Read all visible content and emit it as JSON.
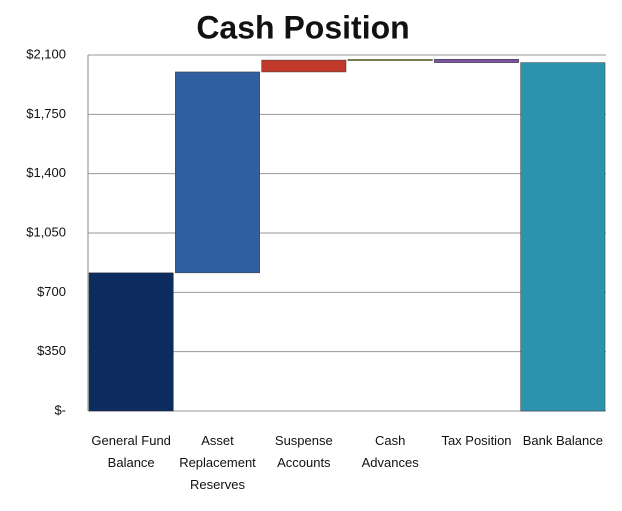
{
  "chart_data": {
    "type": "waterfall",
    "title": "Cash Position",
    "categories": [
      "General Fund Balance",
      "Asset Replacement Reserves",
      "Suspense Accounts",
      "Cash Advances",
      "Tax Position",
      "Bank Balance"
    ],
    "values": [
      815,
      1185,
      70,
      5,
      -20,
      2055
    ],
    "colors": [
      "#0c2b5e",
      "#2f5f9f",
      "#c0392b",
      "#b7c46a",
      "#7b55a3",
      "#2b93ad"
    ],
    "ylim": [
      0,
      2100
    ],
    "yticks": [
      {
        "value": 0,
        "label": "$-"
      },
      {
        "value": 350,
        "label": "$350"
      },
      {
        "value": 700,
        "label": "$700"
      },
      {
        "value": 1050,
        "label": "$1,050"
      },
      {
        "value": 1400,
        "label": "$1,400"
      },
      {
        "value": 1750,
        "label": "$1,750"
      },
      {
        "value": 2100,
        "label": "$2,100"
      }
    ],
    "grid": true
  }
}
